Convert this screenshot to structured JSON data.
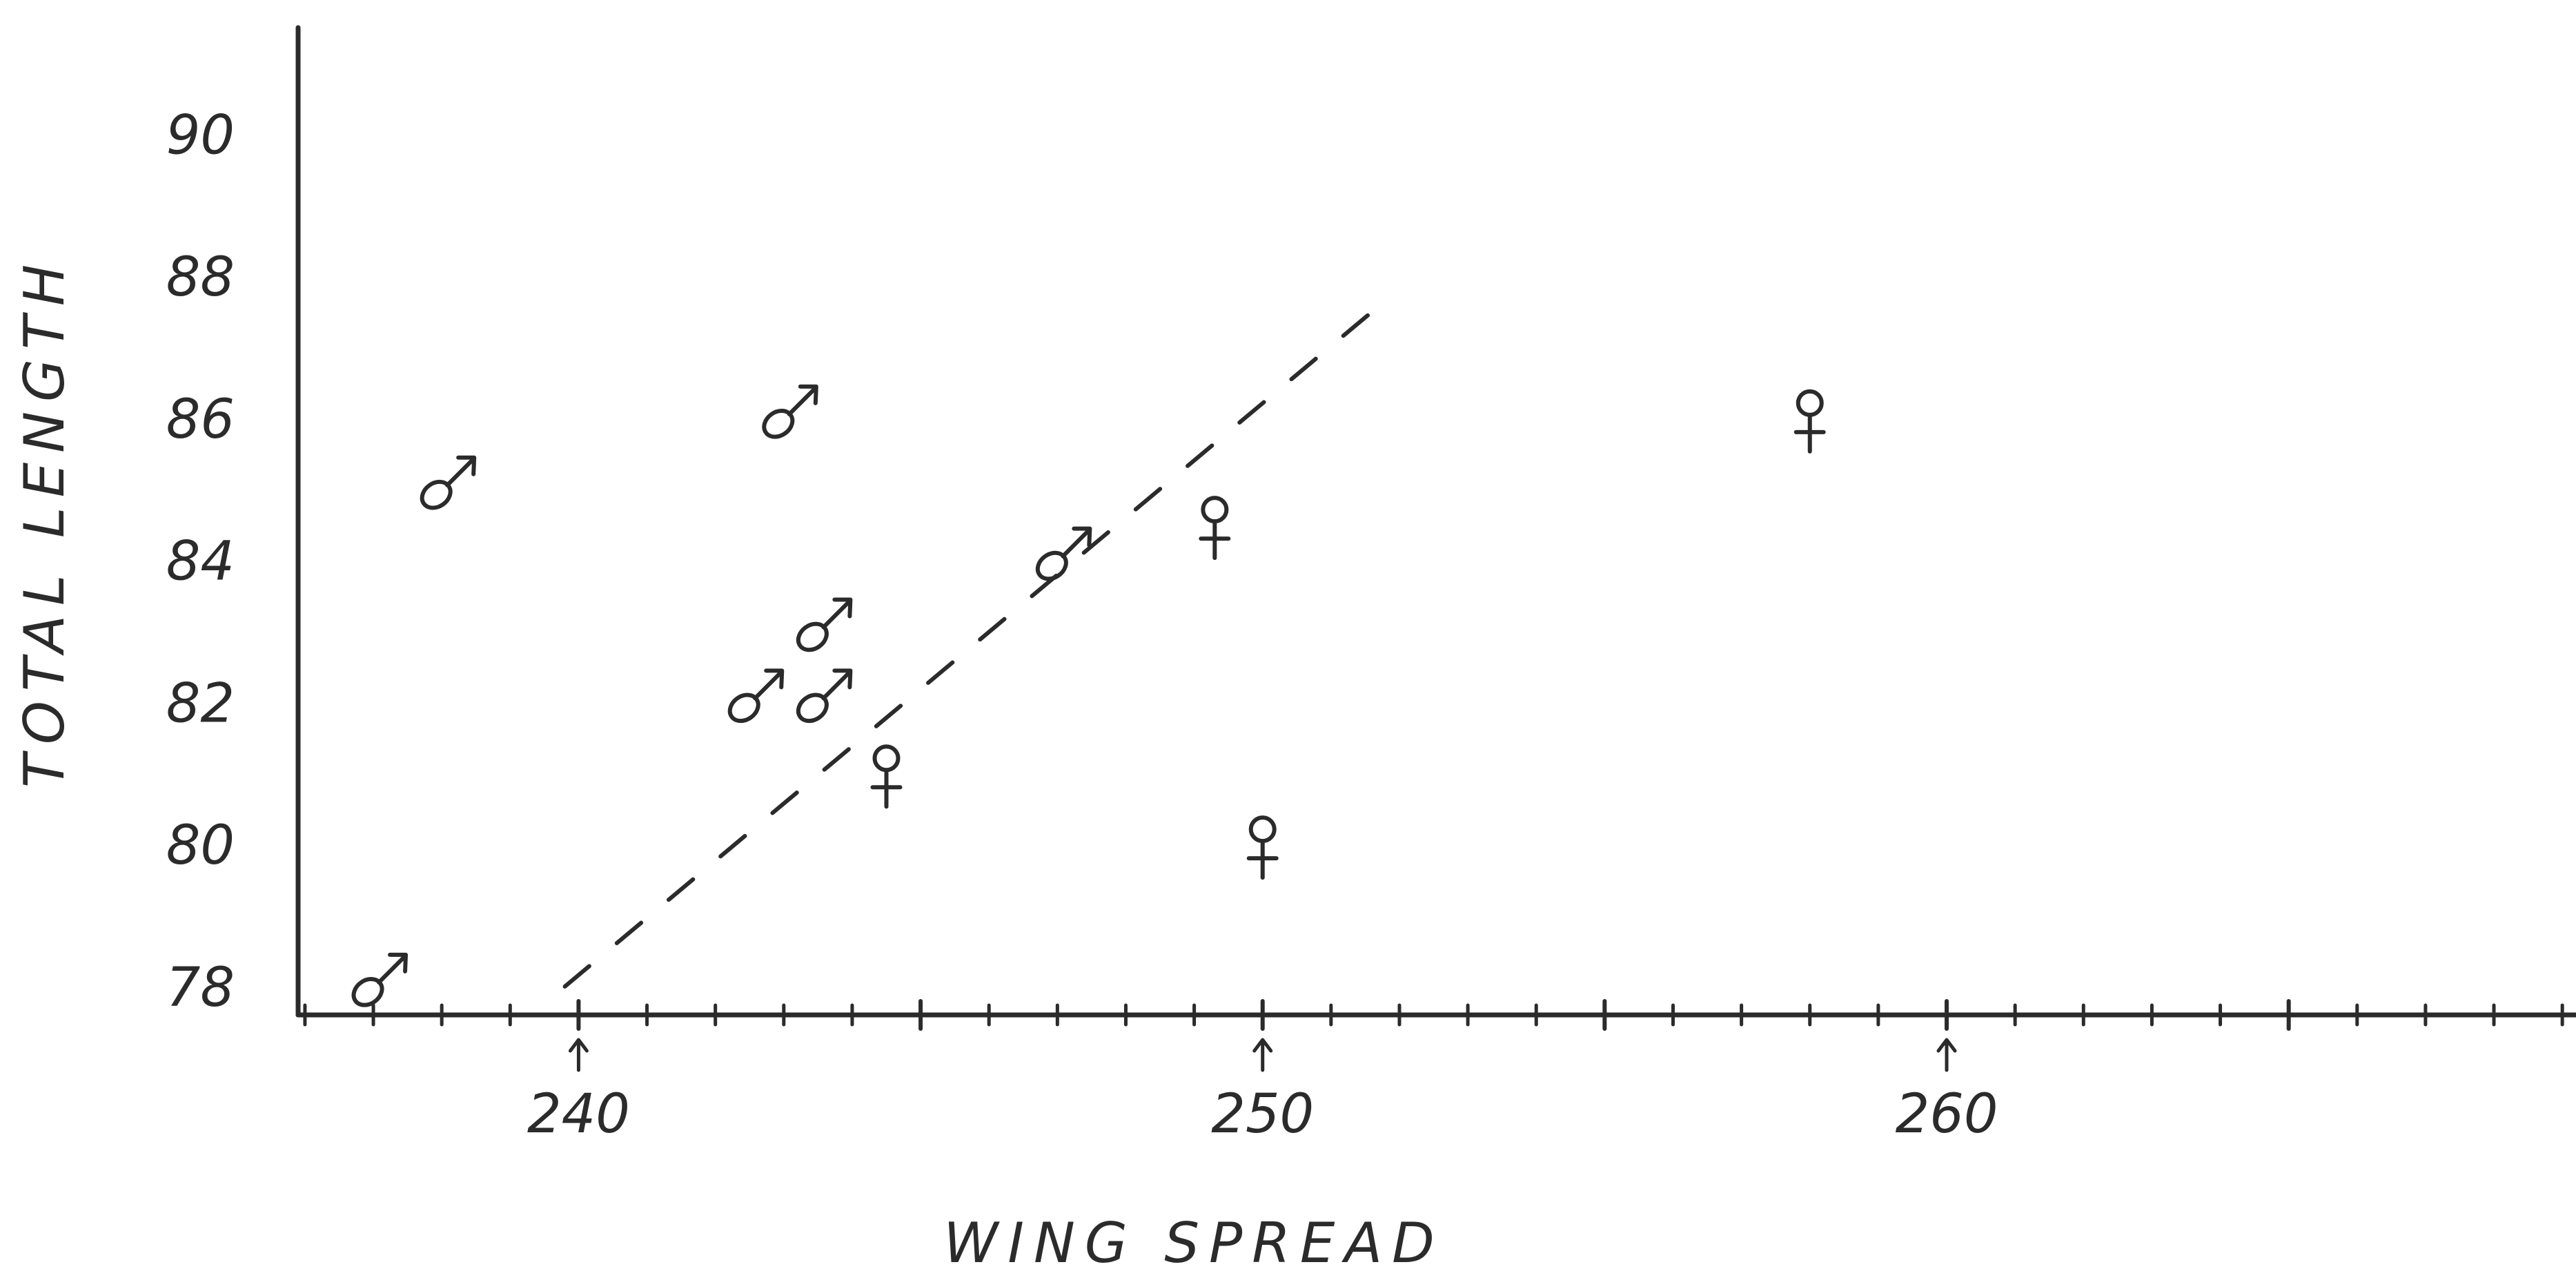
{
  "chart_data": {
    "type": "scatter",
    "title": "",
    "xlabel": "WING SPREAD",
    "ylabel": "TOTAL LENGTH",
    "xlim": [
      235.9,
      269.2
    ],
    "ylim": [
      77.6,
      91.5
    ],
    "x_ticks": [
      "240",
      "250",
      "260"
    ],
    "x_tick_values": [
      240,
      250,
      260
    ],
    "y_ticks": [
      "78",
      "80",
      "82",
      "84",
      "86",
      "88",
      "90"
    ],
    "y_tick_values": [
      78,
      80,
      82,
      84,
      86,
      88,
      90
    ],
    "grid": false,
    "series": [
      {
        "symbol": "♂",
        "points": [
          {
            "x": 237,
            "y": 78
          },
          {
            "x": 238,
            "y": 85
          },
          {
            "x": 243,
            "y": 86
          },
          {
            "x": 242.5,
            "y": 82
          },
          {
            "x": 243.5,
            "y": 83
          },
          {
            "x": 243.5,
            "y": 82
          },
          {
            "x": 247,
            "y": 84
          }
        ]
      },
      {
        "symbol": "♀",
        "points": [
          {
            "x": 244.5,
            "y": 81
          },
          {
            "x": 249.3,
            "y": 84.5
          },
          {
            "x": 250,
            "y": 80
          },
          {
            "x": 258,
            "y": 86
          }
        ]
      }
    ],
    "dashed_line": {
      "x": [
        239.8,
        251.6
      ],
      "y": [
        78,
        87.5
      ]
    },
    "colors": {
      "ink": "#2b2b2b",
      "background": "#ffffff"
    }
  }
}
